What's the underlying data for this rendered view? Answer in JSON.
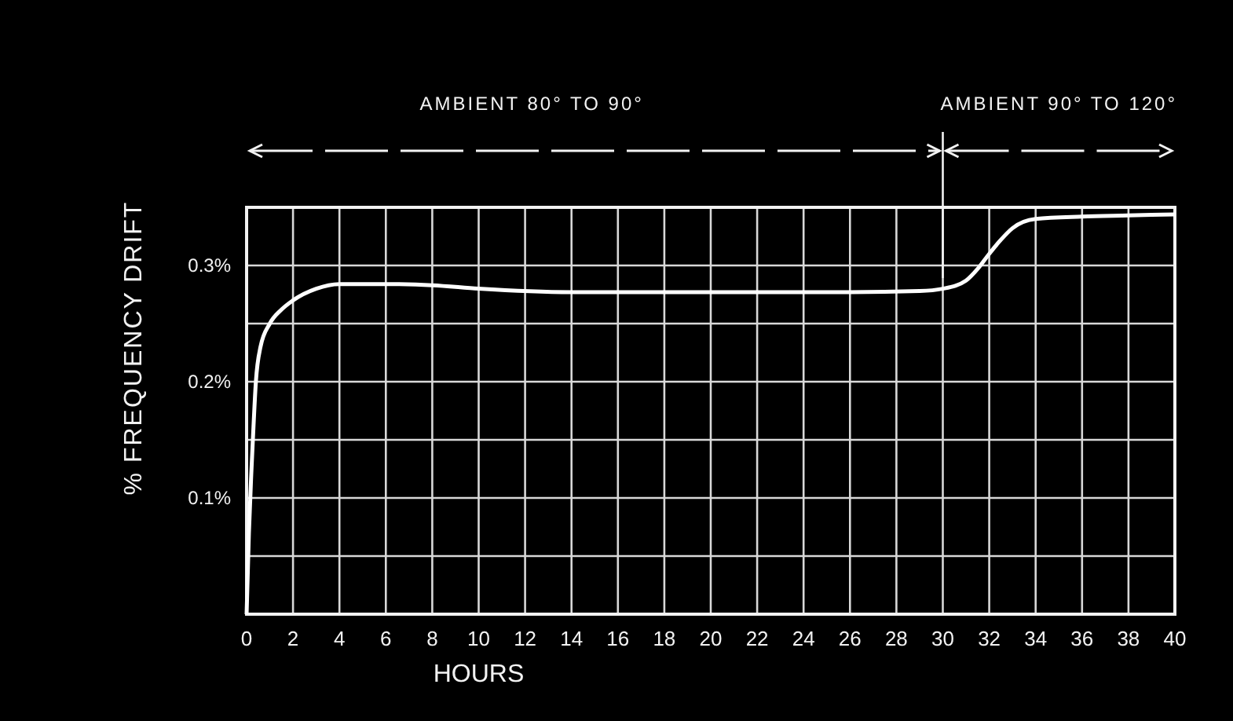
{
  "chart_data": {
    "type": "line",
    "xlabel": "HOURS",
    "ylabel": "% FREQUENCY DRIFT",
    "x": [
      0,
      0.1,
      0.2,
      0.27,
      0.4,
      0.6,
      1,
      1.5,
      2,
      3,
      4,
      6,
      8,
      10,
      14,
      20,
      26,
      29,
      30,
      31,
      31.5,
      32,
      32.5,
      33,
      34,
      36,
      38,
      40
    ],
    "series": [
      {
        "color": "#ffffff",
        "values": [
          0,
          0.07,
          0.12,
          0.15,
          0.2,
          0.23,
          0.25,
          0.262,
          0.27,
          0.28,
          0.284,
          0.284,
          0.283,
          0.28,
          0.277,
          0.277,
          0.277,
          0.278,
          0.28,
          0.287,
          0.297,
          0.31,
          0.322,
          0.332,
          0.34,
          0.342,
          0.343,
          0.344
        ]
      }
    ],
    "xlim": [
      0,
      40
    ],
    "ylim": [
      0,
      0.35
    ],
    "xticks": [
      0,
      2,
      4,
      6,
      8,
      10,
      12,
      14,
      16,
      18,
      20,
      22,
      24,
      26,
      28,
      30,
      32,
      34,
      36,
      38,
      40
    ],
    "yticks": [
      {
        "value": 0,
        "label": null
      },
      {
        "value": 0.05,
        "label": null
      },
      {
        "value": 0.1,
        "label": "0.1%"
      },
      {
        "value": 0.15,
        "label": null
      },
      {
        "value": 0.2,
        "label": "0.2%"
      },
      {
        "value": 0.25,
        "label": null
      },
      {
        "value": 0.3,
        "label": "0.3%"
      },
      {
        "value": 0.35,
        "label": null
      }
    ],
    "grid": true,
    "marker": "none",
    "line_style": "solid",
    "annotations": [
      "AMBIENT 80° TO 90°",
      "AMBIENT 90° TO 120°"
    ]
  }
}
